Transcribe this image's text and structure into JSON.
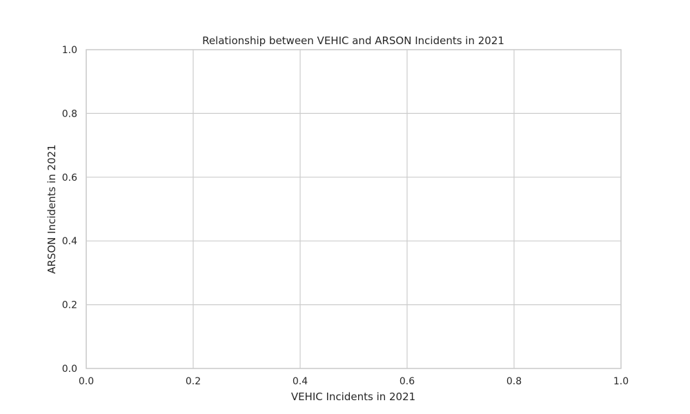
{
  "chart_data": {
    "type": "scatter",
    "title": "Relationship between VEHIC and ARSON Incidents in 2021",
    "xlabel": "VEHIC Incidents in 2021",
    "ylabel": "ARSON Incidents in 2021",
    "xlim": [
      0,
      1
    ],
    "ylim": [
      0,
      1
    ],
    "xticks": [
      0.0,
      0.2,
      0.4,
      0.6,
      0.8,
      1.0
    ],
    "yticks": [
      0.0,
      0.2,
      0.4,
      0.6,
      0.8,
      1.0
    ],
    "xtick_labels": [
      "0.0",
      "0.2",
      "0.4",
      "0.6",
      "0.8",
      "1.0"
    ],
    "ytick_labels": [
      "0.0",
      "0.2",
      "0.4",
      "0.6",
      "0.8",
      "1.0"
    ],
    "grid": true,
    "series": [
      {
        "name": "",
        "x": [],
        "y": []
      }
    ],
    "colors": {
      "grid": "#cccccc",
      "spine": "#cccccc",
      "text": "#262626",
      "background": "#ffffff"
    }
  }
}
